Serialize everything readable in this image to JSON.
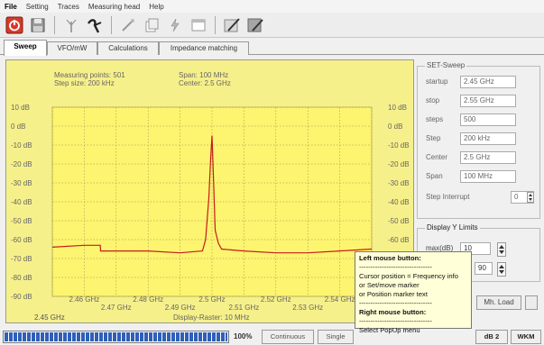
{
  "menu": [
    "File",
    "Setting",
    "Traces",
    "Measuring head",
    "Help"
  ],
  "icons": [
    "power-icon",
    "save-icon",
    "antenna-icon",
    "probe-icon",
    "wand-icon",
    "copy-icon",
    "lightning-icon",
    "window-icon",
    "pen-icon",
    "disk-pen-icon"
  ],
  "tabs": [
    "Sweep",
    "VFO/mW",
    "Calculations",
    "Impedance matching"
  ],
  "chart_info": {
    "measuring_points": "Measuring points: 501",
    "step_size": "Step size: 200 kHz",
    "span": "Span: 100 MHz",
    "center": "Center: 2.5 GHz",
    "display_raster": "Display-Raster: 10 MHz",
    "freq_start": "2.45 GHz"
  },
  "y_ticks": [
    "10 dB",
    "0 dB",
    "-10 dB",
    "-20 dB",
    "-30 dB",
    "-40 dB",
    "-50 dB",
    "-60 dB",
    "-70 dB",
    "-80 dB",
    "-90 dB"
  ],
  "x_ticks_row1": [
    "2.46 GHz",
    "2.48 GHz",
    "2.5 GHz",
    "2.52 GHz",
    "2.54 GHz"
  ],
  "x_ticks_row2": [
    "2.47 GHz",
    "2.49 GHz",
    "2.51 GHz",
    "2.53 GHz"
  ],
  "set_sweep": {
    "title": "SET-Sweep",
    "startup_label": "startup",
    "startup_value": "2.45 GHz",
    "stop_label": "stop",
    "stop_value": "2.55 GHz",
    "steps_label": "steps",
    "steps_value": "500",
    "step_label": "Step",
    "step_value": "200 kHz",
    "center_label": "Center",
    "center_value": "2.5 GHz",
    "span_label": "Span",
    "span_value": "100 MHz",
    "interrupt_label": "Step Interrupt",
    "interrupt_value": "0"
  },
  "display_y": {
    "title": "Display Y Limits",
    "max_label": "max(dB)",
    "max_value": "10",
    "min_value": "90"
  },
  "mh_load": "Mh. Load",
  "tooltip": {
    "title": "Left mouse button:",
    "divider": "--------------------------------",
    "line1": "Cursor position = Frequency info",
    "line2": "or Set/move marker",
    "line3": "or Position marker text",
    "right_title": "Right mouse button:",
    "right_line": "Select PopUp menu"
  },
  "status": {
    "progress_percent": 100,
    "progress_text": "100%",
    "continuous": "Continuous",
    "single": "Single",
    "db2": "dB 2",
    "wkm": "WKM"
  },
  "colors": {
    "plot_bg": "#fdf46f",
    "trace": "#c41c1c",
    "progress": "#2f5fb8"
  },
  "chart_data": {
    "type": "line",
    "xlabel": "",
    "ylabel": "",
    "xlim": [
      2.45,
      2.55
    ],
    "ylim": [
      -90,
      10
    ],
    "x": [
      2.45,
      2.46,
      2.465,
      2.4651,
      2.48,
      2.49,
      2.497,
      2.498,
      2.499,
      2.4995,
      2.5,
      2.5005,
      2.501,
      2.502,
      2.503,
      2.51,
      2.52,
      2.53,
      2.54,
      2.55
    ],
    "series": [
      {
        "values": [
          -64,
          -63,
          -63,
          -66,
          -66,
          -67,
          -66,
          -60,
          -38,
          -20,
          -5,
          -30,
          -55,
          -62,
          -65,
          -66,
          -67,
          -67,
          -66,
          -65
        ]
      }
    ]
  }
}
